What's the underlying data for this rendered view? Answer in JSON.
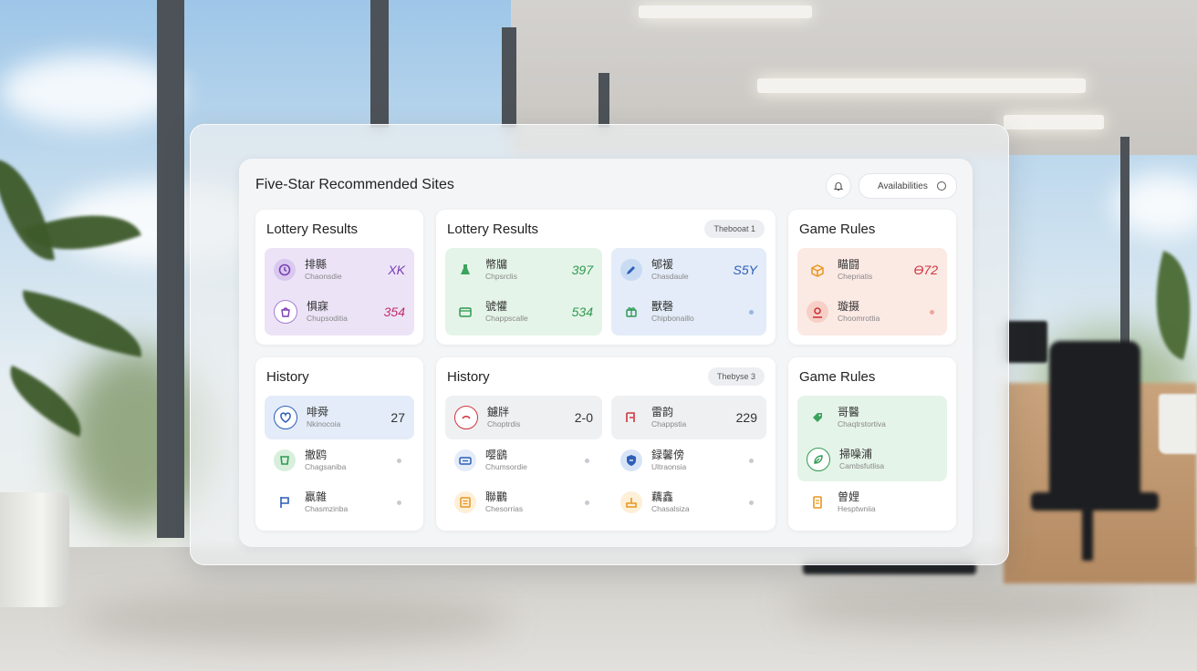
{
  "header": {
    "title": "Five-Star Recommended Sites",
    "search_label": "Availabilities"
  },
  "cards": [
    {
      "title": "Lottery Results",
      "rows": [
        {
          "icon": "clock-icon",
          "label": "排縣",
          "sub": "Chaonsdie",
          "value": "ΧΚ"
        },
        {
          "icon": "bag-icon",
          "label": "惧寐",
          "sub": "Chupsoditia",
          "value": "354"
        }
      ]
    },
    {
      "title": "Lottery Results",
      "badge": "Thebooat 1",
      "rows": [
        {
          "icon": "flask-icon",
          "label": "幣牖",
          "sub": "Chpsrclis",
          "value": "397"
        },
        {
          "icon": "rocket-icon",
          "label": "郇禐",
          "sub": "Chasdaule",
          "value": "S5Y"
        },
        {
          "icon": "card-icon",
          "label": "號懽",
          "sub": "Chappscalle",
          "value": "534"
        },
        {
          "icon": "gift-icon",
          "label": "獸磬",
          "sub": "Chipbonaillo",
          "value": ""
        }
      ]
    },
    {
      "title": "Game Rules",
      "rows": [
        {
          "icon": "box-icon",
          "label": "瞄闘",
          "sub": "Chepriatis",
          "value": "Ө72"
        },
        {
          "icon": "pin-icon",
          "label": "璇摄",
          "sub": "Choomrottia",
          "value": ""
        }
      ]
    },
    {
      "title": "History",
      "rows": [
        {
          "icon": "heart-icon",
          "label": "啡舜",
          "sub": "Nkinocoia",
          "value": "27"
        },
        {
          "icon": "cup-icon",
          "label": "撤鸥",
          "sub": "Chagsaniba",
          "value": ""
        },
        {
          "icon": "flag-icon",
          "label": "贏雜",
          "sub": "Chasmzinba",
          "value": ""
        }
      ]
    },
    {
      "title": "History",
      "badge": "Thebyse 3",
      "rows": [
        {
          "icon": "target-icon",
          "label": "鑢牉",
          "sub": "Choptrdis",
          "value": "2-0"
        },
        {
          "icon": "chart-icon",
          "label": "雷韵",
          "sub": "Chappstia",
          "value": "229"
        },
        {
          "icon": "ticket-icon",
          "label": "嘤鷂",
          "sub": "Chumsordie",
          "value": ""
        },
        {
          "icon": "shield-icon",
          "label": "録馨傍",
          "sub": "Ultraonsia",
          "value": ""
        },
        {
          "icon": "list-icon",
          "label": "聯鸝",
          "sub": "Chesorrias",
          "value": ""
        },
        {
          "icon": "stamp-icon",
          "label": "藕鑫",
          "sub": "Chasalsiza",
          "value": ""
        }
      ]
    },
    {
      "title": "Game Rules",
      "rows": [
        {
          "icon": "tag-icon",
          "label": "哥醫",
          "sub": "Chaqtrstortiva",
          "value": ""
        },
        {
          "icon": "leaf-icon",
          "label": "掃噪浦",
          "sub": "Cambsfutlisa",
          "value": ""
        },
        {
          "icon": "doc-icon",
          "label": "曽娌",
          "sub": "Hesptwniia",
          "value": ""
        }
      ]
    }
  ],
  "colors": {
    "purple": "#7b3fb4",
    "purple_bg": "#ece3f7",
    "green": "#2f9a52",
    "green_bg": "#e5f4e8",
    "blue": "#2d5eb8",
    "blue_bg": "#e3ecf8",
    "red": "#d0343c",
    "red_bg": "#fbe9e4",
    "orange": "#e8961e",
    "gray_bg": "#eff0f2",
    "dot": "#c7cad0"
  }
}
